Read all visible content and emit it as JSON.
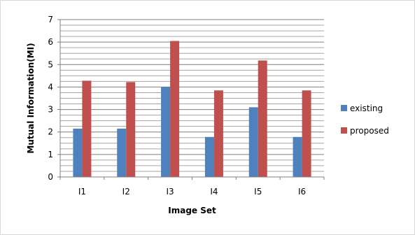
{
  "chart_data": {
    "type": "bar",
    "title": "",
    "xlabel": "Image Set",
    "ylabel": "Mutual Information(MI)",
    "categories": [
      "I1",
      "I2",
      "I3",
      "I4",
      "I5",
      "I6"
    ],
    "series": [
      {
        "name": "existing",
        "values": [
          2.15,
          2.15,
          4.0,
          1.78,
          3.1,
          1.78
        ],
        "color": "#4f81bd"
      },
      {
        "name": "proposed",
        "values": [
          4.28,
          4.22,
          6.05,
          3.85,
          5.18,
          3.85
        ],
        "color": "#c0504d"
      }
    ],
    "ylim": [
      0,
      7
    ],
    "yticks": [
      0,
      1,
      2,
      3,
      4,
      5,
      6,
      7
    ],
    "minor_grid_step": 0.25,
    "grid": true,
    "legend_position": "right"
  }
}
